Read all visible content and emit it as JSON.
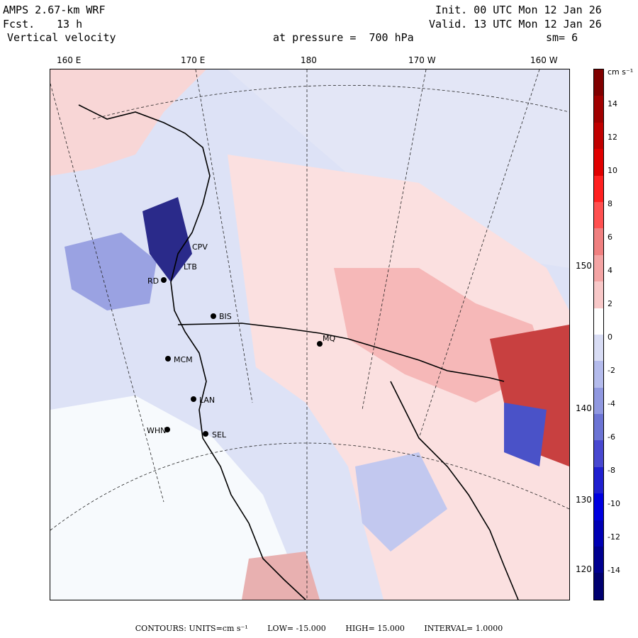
{
  "header": {
    "model": "AMPS 2.67-km WRF",
    "forecast_label": "Fcst.",
    "forecast_value": "13 h",
    "field": "Vertical velocity",
    "init": "Init. 00 UTC Mon 12 Jan 26",
    "valid": "Valid. 13 UTC Mon 12 Jan 26",
    "pressure": "at pressure =  700 hPa",
    "smoothing": "sm= 6"
  },
  "longitude_labels": [
    "160 E",
    "170 E",
    "180",
    "170 W",
    "160 W"
  ],
  "latitude_labels": [
    "150 W",
    "140 W",
    "130 W",
    "120 W"
  ],
  "stations": [
    "CPV",
    "LTB",
    "BIS",
    "MCM",
    "LAN",
    "WHN",
    "SEL",
    "RD",
    "MQ"
  ],
  "colorbar": {
    "units": "cm s⁻¹",
    "ticks": [
      "14",
      "12",
      "10",
      "8",
      "6",
      "4",
      "2",
      "0",
      "-2",
      "-4",
      "-6",
      "-8",
      "-10",
      "-12",
      "-14"
    ],
    "colors": [
      "#800000",
      "#a00000",
      "#c00000",
      "#e00000",
      "#ff2020",
      "#ff5050",
      "#f08080",
      "#f4a4a4",
      "#f8c8c8",
      "#ffffff",
      "#d8dcf4",
      "#b4bbec",
      "#9098e0",
      "#6c74d4",
      "#4848d0",
      "#2020d0",
      "#0000e0",
      "#0000b4",
      "#000090",
      "#000070"
    ]
  },
  "footer": {
    "contours": "CONTOURS:  UNITS=cm s⁻¹",
    "low": "LOW= -15.000",
    "high": "HIGH= 15.000",
    "interval": "INTERVAL=  1.0000"
  }
}
